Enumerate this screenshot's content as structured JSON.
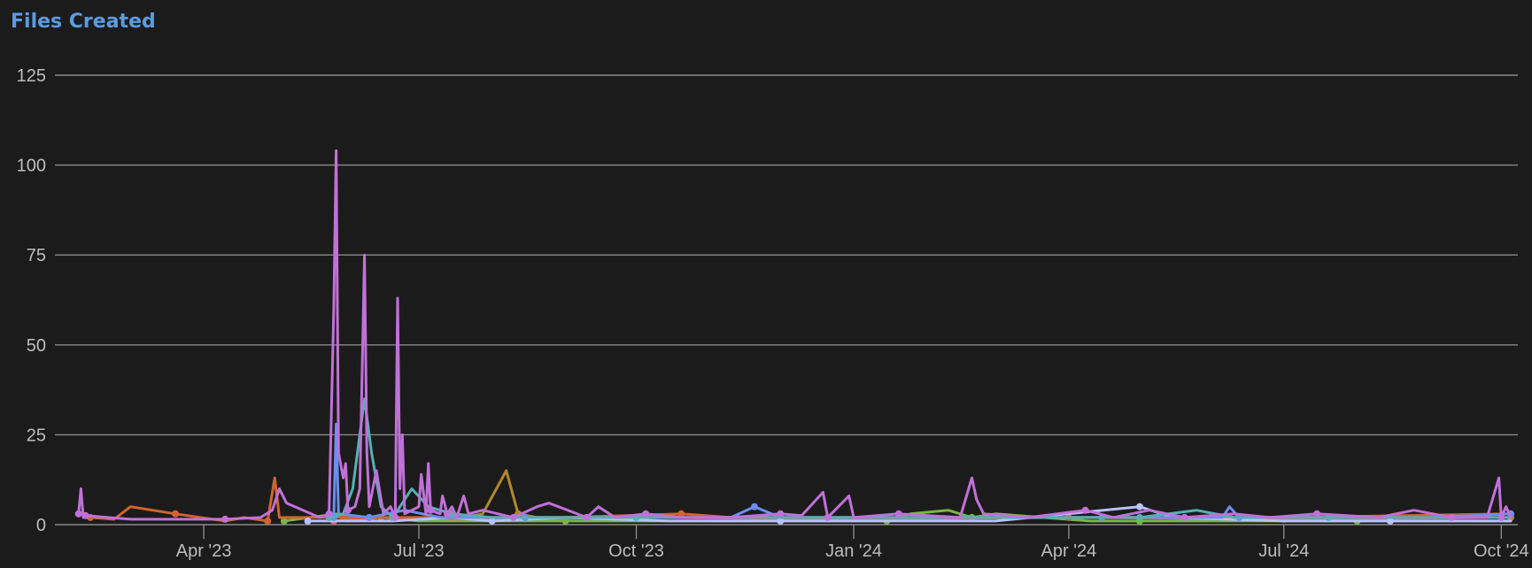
{
  "chart_data": {
    "type": "line",
    "title": "Files Created",
    "xlabel": "",
    "ylabel": "",
    "x_axis": {
      "type": "date",
      "range": [
        "2023-01-28",
        "2024-10-08"
      ],
      "ticks": [
        {
          "date": "2023-04-01",
          "label": "Apr '23"
        },
        {
          "date": "2023-07-01",
          "label": "Jul '23"
        },
        {
          "date": "2023-10-01",
          "label": "Oct '23"
        },
        {
          "date": "2024-01-01",
          "label": "Jan '24"
        },
        {
          "date": "2024-04-01",
          "label": "Apr '24"
        },
        {
          "date": "2024-07-01",
          "label": "Jul '24"
        },
        {
          "date": "2024-10-01",
          "label": "Oct '24"
        }
      ]
    },
    "y_axis": {
      "range": [
        0,
        125
      ],
      "ticks": [
        0,
        25,
        50,
        75,
        100,
        125
      ]
    },
    "grid": true,
    "legend": "none",
    "series": [
      {
        "color": "#c071d9",
        "points": [
          [
            "2023-02-07",
            3
          ],
          [
            "2023-02-08",
            10
          ],
          [
            "2023-02-09",
            2
          ],
          [
            "2023-02-10",
            2.5
          ],
          [
            "2023-03-01",
            1.5
          ],
          [
            "2023-03-20",
            1.5
          ],
          [
            "2023-04-10",
            1.5
          ],
          [
            "2023-04-25",
            2
          ],
          [
            "2023-04-30",
            4
          ],
          [
            "2023-05-03",
            10
          ],
          [
            "2023-05-06",
            6
          ],
          [
            "2023-05-20",
            2
          ],
          [
            "2023-05-24",
            3
          ],
          [
            "2023-05-26",
            60
          ],
          [
            "2023-05-27",
            104
          ],
          [
            "2023-05-28",
            20
          ],
          [
            "2023-05-30",
            13
          ],
          [
            "2023-05-31",
            17
          ],
          [
            "2023-06-01",
            4
          ],
          [
            "2023-06-04",
            5
          ],
          [
            "2023-06-06",
            10
          ],
          [
            "2023-06-08",
            75
          ],
          [
            "2023-06-09",
            20
          ],
          [
            "2023-06-10",
            5
          ],
          [
            "2023-06-13",
            15
          ],
          [
            "2023-06-16",
            3
          ],
          [
            "2023-06-19",
            5
          ],
          [
            "2023-06-21",
            2
          ],
          [
            "2023-06-22",
            63
          ],
          [
            "2023-06-23",
            10
          ],
          [
            "2023-06-24",
            25
          ],
          [
            "2023-06-25",
            3
          ],
          [
            "2023-07-01",
            5
          ],
          [
            "2023-07-02",
            14
          ],
          [
            "2023-07-04",
            3
          ],
          [
            "2023-07-05",
            17
          ],
          [
            "2023-07-06",
            4
          ],
          [
            "2023-07-10",
            3
          ],
          [
            "2023-07-11",
            8
          ],
          [
            "2023-07-13",
            3
          ],
          [
            "2023-07-15",
            5
          ],
          [
            "2023-07-17",
            2
          ],
          [
            "2023-07-20",
            8
          ],
          [
            "2023-07-22",
            3
          ],
          [
            "2023-07-28",
            4
          ],
          [
            "2023-08-10",
            2
          ],
          [
            "2023-08-20",
            5
          ],
          [
            "2023-08-25",
            6
          ],
          [
            "2023-09-10",
            2
          ],
          [
            "2023-09-15",
            5
          ],
          [
            "2023-09-22",
            2
          ],
          [
            "2023-10-05",
            3
          ],
          [
            "2023-10-20",
            2
          ],
          [
            "2023-11-10",
            2
          ],
          [
            "2023-12-01",
            3
          ],
          [
            "2023-12-10",
            2.5
          ],
          [
            "2023-12-19",
            9
          ],
          [
            "2023-12-21",
            2
          ],
          [
            "2023-12-30",
            8
          ],
          [
            "2024-01-01",
            2
          ],
          [
            "2024-01-20",
            3
          ],
          [
            "2024-02-15",
            2
          ],
          [
            "2024-02-20",
            13
          ],
          [
            "2024-02-22",
            7
          ],
          [
            "2024-02-25",
            3
          ],
          [
            "2024-03-15",
            2
          ],
          [
            "2024-04-08",
            4
          ],
          [
            "2024-04-20",
            2
          ],
          [
            "2024-05-05",
            4
          ],
          [
            "2024-05-20",
            2
          ],
          [
            "2024-06-10",
            3
          ],
          [
            "2024-06-25",
            2
          ],
          [
            "2024-07-15",
            3
          ],
          [
            "2024-08-10",
            2
          ],
          [
            "2024-08-25",
            4
          ],
          [
            "2024-09-10",
            2
          ],
          [
            "2024-09-25",
            2
          ],
          [
            "2024-09-30",
            13
          ],
          [
            "2024-10-01",
            2
          ],
          [
            "2024-10-03",
            5
          ],
          [
            "2024-10-05",
            2
          ]
        ]
      },
      {
        "color": "#55b0b3",
        "points": [
          [
            "2023-05-24",
            2
          ],
          [
            "2023-05-30",
            3
          ],
          [
            "2023-06-03",
            10
          ],
          [
            "2023-06-08",
            35
          ],
          [
            "2023-06-11",
            20
          ],
          [
            "2023-06-15",
            5
          ],
          [
            "2023-06-20",
            2
          ],
          [
            "2023-06-28",
            10
          ],
          [
            "2023-07-05",
            5
          ],
          [
            "2023-07-15",
            3
          ],
          [
            "2023-08-01",
            2
          ],
          [
            "2023-09-01",
            2
          ],
          [
            "2023-10-01",
            2
          ],
          [
            "2023-12-01",
            2
          ],
          [
            "2024-03-01",
            2
          ],
          [
            "2024-05-01",
            2
          ],
          [
            "2024-05-25",
            4
          ],
          [
            "2024-06-10",
            2
          ],
          [
            "2024-07-20",
            2
          ],
          [
            "2024-09-01",
            2
          ],
          [
            "2024-10-05",
            2
          ]
        ]
      },
      {
        "color": "#6b8ff0",
        "points": [
          [
            "2023-05-26",
            2
          ],
          [
            "2023-05-27",
            28
          ],
          [
            "2023-05-28",
            3
          ],
          [
            "2023-06-10",
            2
          ],
          [
            "2023-06-25",
            4
          ],
          [
            "2023-07-10",
            2
          ],
          [
            "2023-08-15",
            2
          ],
          [
            "2023-10-01",
            2
          ],
          [
            "2023-11-10",
            2
          ],
          [
            "2023-11-20",
            5
          ],
          [
            "2023-12-01",
            2
          ],
          [
            "2024-02-01",
            2
          ],
          [
            "2024-04-15",
            2
          ],
          [
            "2024-06-05",
            2
          ],
          [
            "2024-06-08",
            5
          ],
          [
            "2024-06-12",
            2
          ],
          [
            "2024-07-20",
            2
          ],
          [
            "2024-09-01",
            2
          ],
          [
            "2024-10-05",
            3
          ]
        ]
      },
      {
        "color": "#b9c2ff",
        "points": [
          [
            "2023-05-15",
            1
          ],
          [
            "2023-06-20",
            1
          ],
          [
            "2023-07-15",
            2
          ],
          [
            "2023-08-01",
            1
          ],
          [
            "2023-09-01",
            2
          ],
          [
            "2023-10-15",
            1
          ],
          [
            "2023-12-01",
            1
          ],
          [
            "2024-01-10",
            1
          ],
          [
            "2024-03-01",
            1
          ],
          [
            "2024-05-01",
            5
          ],
          [
            "2024-05-15",
            2
          ],
          [
            "2024-07-01",
            1
          ],
          [
            "2024-08-15",
            1
          ],
          [
            "2024-10-05",
            1
          ]
        ]
      },
      {
        "color": "#d2652e",
        "points": [
          [
            "2023-02-12",
            2
          ],
          [
            "2023-02-22",
            1.5
          ],
          [
            "2023-03-01",
            5
          ],
          [
            "2023-03-20",
            3
          ],
          [
            "2023-04-10",
            1
          ],
          [
            "2023-04-18",
            2
          ],
          [
            "2023-04-28",
            1
          ],
          [
            "2023-05-01",
            13
          ],
          [
            "2023-05-03",
            2
          ],
          [
            "2023-05-30",
            2
          ],
          [
            "2023-07-01",
            2
          ],
          [
            "2023-09-01",
            2
          ],
          [
            "2023-10-20",
            3
          ],
          [
            "2023-11-10",
            2
          ],
          [
            "2024-01-01",
            2
          ],
          [
            "2024-04-01",
            2
          ],
          [
            "2024-07-01",
            2
          ],
          [
            "2024-10-05",
            3
          ]
        ]
      },
      {
        "color": "#b0892c",
        "points": [
          [
            "2023-07-20",
            2
          ],
          [
            "2023-07-28",
            3
          ],
          [
            "2023-08-07",
            15
          ],
          [
            "2023-08-12",
            3
          ],
          [
            "2023-08-20",
            2
          ],
          [
            "2023-09-15",
            2
          ],
          [
            "2023-12-01",
            2
          ],
          [
            "2024-03-01",
            2
          ],
          [
            "2024-06-01",
            2
          ],
          [
            "2024-10-05",
            2
          ]
        ]
      },
      {
        "color": "#e55b7c",
        "points": [
          [
            "2023-05-26",
            1
          ],
          [
            "2023-06-15",
            2
          ],
          [
            "2023-08-01",
            1.5
          ],
          [
            "2023-10-01",
            2
          ],
          [
            "2024-01-01",
            1.5
          ],
          [
            "2024-04-01",
            2
          ],
          [
            "2024-07-01",
            1.5
          ],
          [
            "2024-10-05",
            2
          ]
        ]
      },
      {
        "color": "#77b843",
        "points": [
          [
            "2023-05-05",
            1
          ],
          [
            "2023-05-27",
            3
          ],
          [
            "2023-06-01",
            1
          ],
          [
            "2023-06-15",
            2
          ],
          [
            "2023-07-01",
            1
          ],
          [
            "2023-08-01",
            1
          ],
          [
            "2023-09-01",
            1
          ],
          [
            "2023-10-15",
            1
          ],
          [
            "2023-12-01",
            1
          ],
          [
            "2024-01-15",
            1
          ],
          [
            "2024-01-25",
            3
          ],
          [
            "2024-02-10",
            4
          ],
          [
            "2024-02-20",
            2
          ],
          [
            "2024-03-01",
            3
          ],
          [
            "2024-04-10",
            1
          ],
          [
            "2024-05-01",
            1
          ],
          [
            "2024-06-01",
            1
          ],
          [
            "2024-07-01",
            1
          ],
          [
            "2024-08-01",
            1
          ],
          [
            "2024-09-01",
            1
          ],
          [
            "2024-10-05",
            1
          ]
        ]
      }
    ]
  }
}
